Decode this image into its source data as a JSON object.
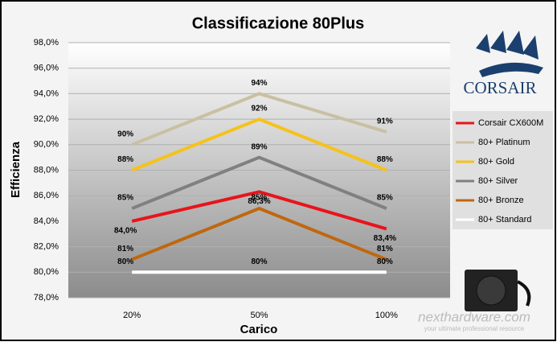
{
  "chart_data": {
    "type": "line",
    "title": "Classificazione 80Plus",
    "x_label": "Carico",
    "y_label": "Efficienza",
    "categories": [
      "20%",
      "50%",
      "100%"
    ],
    "series": [
      {
        "name": "Corsair CX600M",
        "color": "#e8141a",
        "values": [
          84.0,
          86.3,
          83.4
        ],
        "value_labels": [
          "84,0%",
          "86,3%",
          "83,4%"
        ]
      },
      {
        "name": "80+ Platinum",
        "color": "#c9c0a3",
        "values": [
          90,
          94,
          91
        ],
        "value_labels": [
          "90%",
          "94%",
          "91%"
        ]
      },
      {
        "name": "80+ Gold",
        "color": "#f6c21a",
        "values": [
          88,
          92,
          88
        ],
        "value_labels": [
          "88%",
          "92%",
          "88%"
        ]
      },
      {
        "name": "80+ Silver",
        "color": "#808080",
        "values": [
          85,
          89,
          85
        ],
        "value_labels": [
          "85%",
          "89%",
          "85%"
        ]
      },
      {
        "name": "80+ Bronze",
        "color": "#c0670f",
        "values": [
          81,
          85,
          81
        ],
        "value_labels": [
          "81%",
          "85%",
          "81%"
        ]
      },
      {
        "name": "80+ Standard",
        "color": "#ffffff",
        "values": [
          80,
          80,
          80
        ],
        "value_labels": [
          "80%",
          "80%",
          "80%"
        ]
      }
    ],
    "ylim": [
      78,
      98
    ],
    "yticks": [
      {
        "value": 78,
        "label": "78,0%"
      },
      {
        "value": 80,
        "label": "80,0%"
      },
      {
        "value": 82,
        "label": "82,0%"
      },
      {
        "value": 84,
        "label": "84,0%"
      },
      {
        "value": 86,
        "label": "86,0%"
      },
      {
        "value": 88,
        "label": "88,0%"
      },
      {
        "value": 90,
        "label": "90,0%"
      },
      {
        "value": 92,
        "label": "92,0%"
      },
      {
        "value": 94,
        "label": "94,0%"
      },
      {
        "value": 96,
        "label": "96,0%"
      },
      {
        "value": 98,
        "label": "98,0%"
      }
    ],
    "grid": true,
    "legend": "right",
    "brand": "CORSAIR",
    "watermark": "nexthardware.com",
    "watermark_tagline": "your ultimate professional resource"
  }
}
